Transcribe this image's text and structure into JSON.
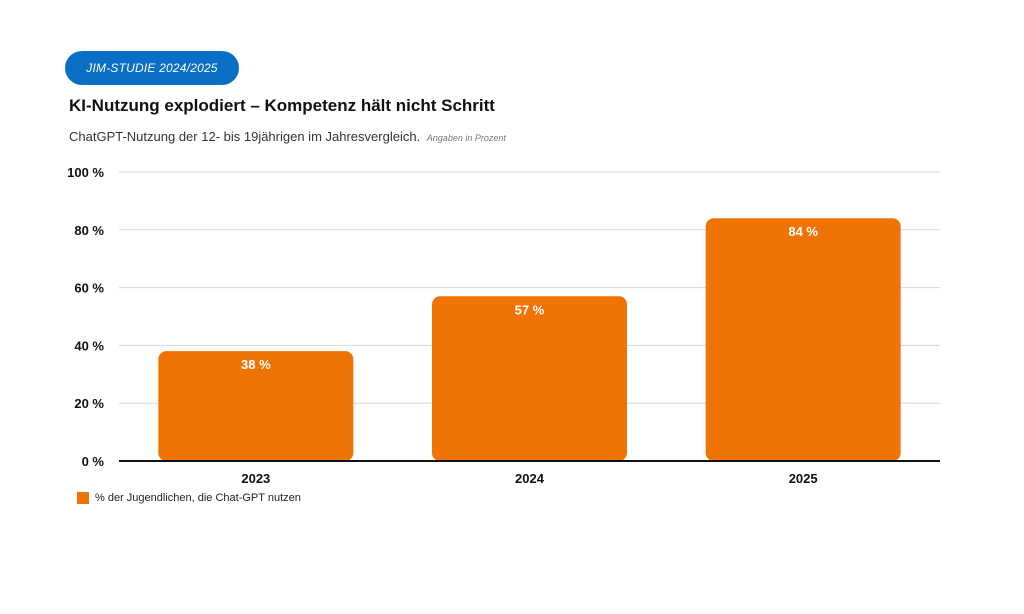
{
  "header": {
    "badge": "JIM-STUDIE 2024/2025",
    "title": "KI-Nutzung explodiert – Kompetenz hält nicht Schritt",
    "subtitle": "ChatGPT-Nutzung der 12- bis 19jährigen im Jahresvergleich.",
    "subtitle_note": "Angaben in Prozent"
  },
  "colors": {
    "badge": "#0a6fc4",
    "bar": "#f07306",
    "grid": "#d9d9d9",
    "axis": "#111111"
  },
  "chart_data": {
    "type": "bar",
    "categories": [
      "2023",
      "2024",
      "2025"
    ],
    "series": [
      {
        "name": "% der Jugendlichen, die Chat-GPT nutzen",
        "values": [
          38,
          57,
          84
        ],
        "value_labels": [
          "38 %",
          "57 %",
          "84 %"
        ]
      }
    ],
    "ylim": [
      0,
      100
    ],
    "yticks": [
      0,
      20,
      40,
      60,
      80,
      100
    ],
    "ytick_labels": [
      "0 %",
      "20 %",
      "40 %",
      "60 %",
      "80 %",
      "100 %"
    ],
    "grid": true,
    "legend_position": "bottom-left"
  }
}
